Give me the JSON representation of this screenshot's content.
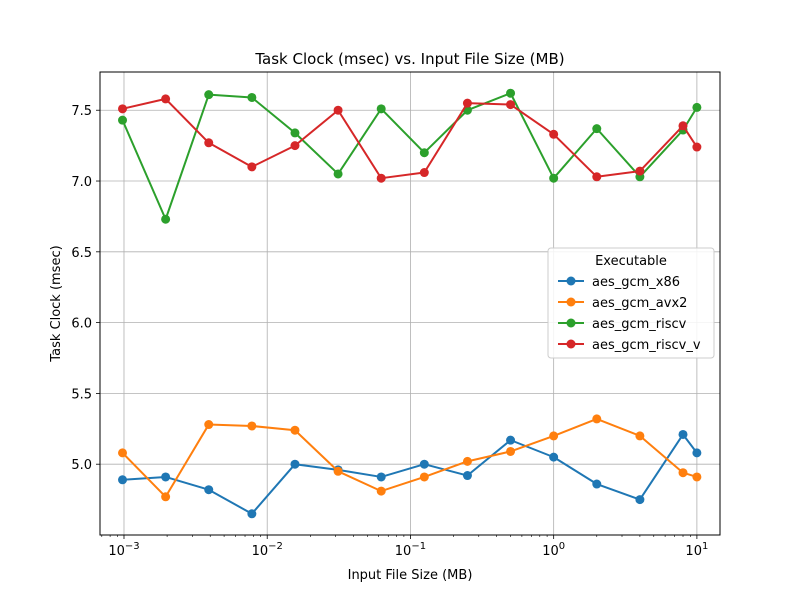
{
  "chart_data": {
    "type": "line",
    "title": "Task Clock (msec) vs. Input File Size (MB)",
    "xlabel": "Input File Size (MB)",
    "ylabel": "Task Clock (msec)",
    "x_scale": "log",
    "xlim": [
      0.00068,
      14.5
    ],
    "ylim": [
      4.5,
      7.77
    ],
    "grid": true,
    "legend": {
      "title": "Executable",
      "placement": "center-right"
    },
    "x_ticks": [
      {
        "value": 0.001,
        "base": "10",
        "exp": "−3"
      },
      {
        "value": 0.01,
        "base": "10",
        "exp": "−2"
      },
      {
        "value": 0.1,
        "base": "10",
        "exp": "−1"
      },
      {
        "value": 1,
        "base": "10",
        "exp": "0"
      },
      {
        "value": 10,
        "base": "10",
        "exp": "1"
      }
    ],
    "y_ticks": [
      {
        "value": 5.0,
        "label": "5.0"
      },
      {
        "value": 5.5,
        "label": "5.5"
      },
      {
        "value": 6.0,
        "label": "6.0"
      },
      {
        "value": 6.5,
        "label": "6.5"
      },
      {
        "value": 7.0,
        "label": "7.0"
      },
      {
        "value": 7.5,
        "label": "7.5"
      }
    ],
    "x": [
      0.0009765625,
      0.001953125,
      0.00390625,
      0.0078125,
      0.015625,
      0.03125,
      0.0625,
      0.125,
      0.25,
      0.5,
      1,
      2,
      4,
      8,
      10
    ],
    "series": [
      {
        "name": "aes_gcm_x86",
        "color": "#1f77b4",
        "values": [
          4.89,
          4.91,
          4.82,
          4.65,
          5.0,
          4.96,
          4.91,
          5.0,
          4.92,
          5.17,
          5.05,
          4.86,
          4.75,
          5.21,
          5.08
        ]
      },
      {
        "name": "aes_gcm_avx2",
        "color": "#ff7f0e",
        "values": [
          5.08,
          4.77,
          5.28,
          5.27,
          5.24,
          4.95,
          4.81,
          4.91,
          5.02,
          5.09,
          5.2,
          5.32,
          5.2,
          4.94,
          4.91
        ]
      },
      {
        "name": "aes_gcm_riscv",
        "color": "#2ca02c",
        "values": [
          7.43,
          6.73,
          7.61,
          7.59,
          7.34,
          7.05,
          7.51,
          7.2,
          7.5,
          7.62,
          7.02,
          7.37,
          7.03,
          7.36,
          7.52
        ]
      },
      {
        "name": "aes_gcm_riscv_v",
        "color": "#d62728",
        "values": [
          7.51,
          7.58,
          7.27,
          7.1,
          7.25,
          7.5,
          7.02,
          7.06,
          7.55,
          7.54,
          7.33,
          7.03,
          7.07,
          7.39,
          7.24
        ]
      }
    ]
  }
}
